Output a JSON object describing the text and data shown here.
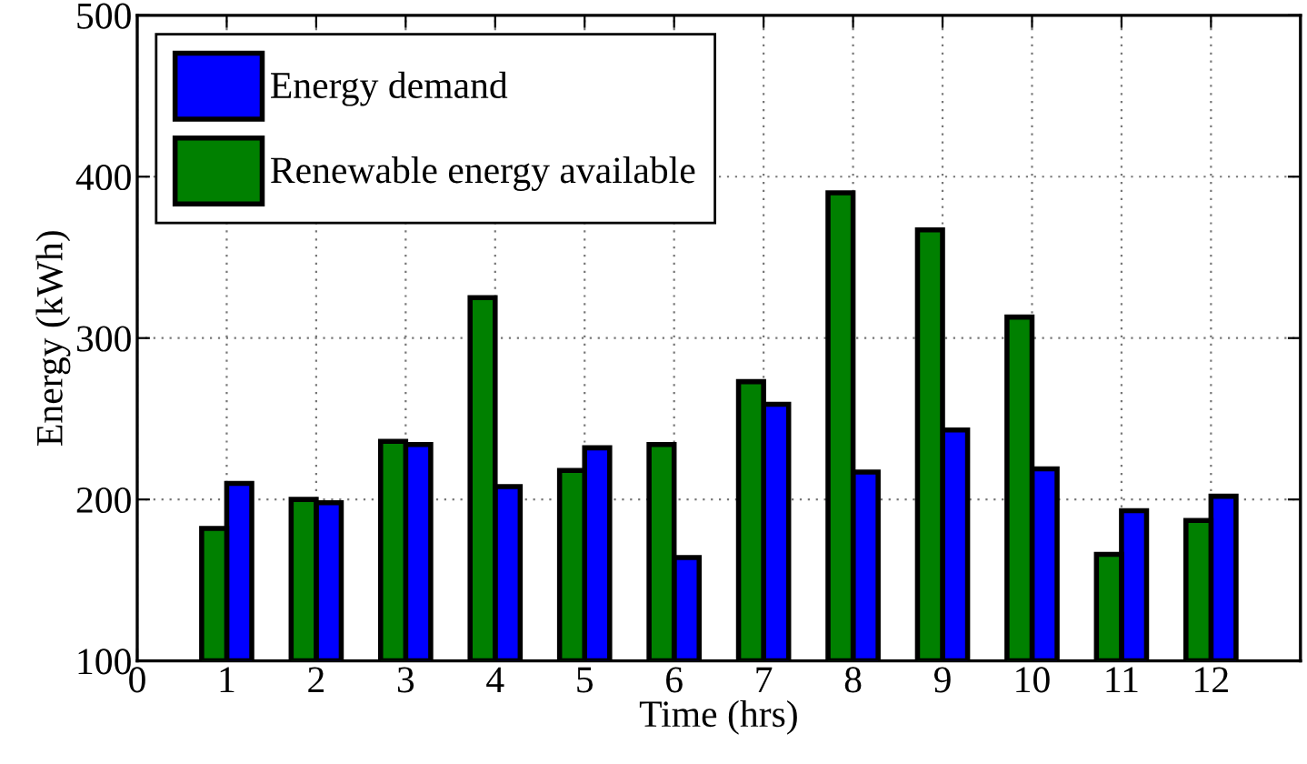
{
  "chart_data": {
    "type": "bar",
    "xlabel": "Time (hrs)",
    "ylabel": "Energy (kWh)",
    "x": [
      1,
      2,
      3,
      4,
      5,
      6,
      7,
      8,
      9,
      10,
      11,
      12
    ],
    "series": [
      {
        "name": "Energy demand",
        "color": "#0000ff",
        "values": [
          210,
          198,
          234,
          208,
          232,
          164,
          259,
          217,
          243,
          219,
          193,
          202
        ]
      },
      {
        "name": "Renewable energy available",
        "color": "#008000",
        "values": [
          182,
          200,
          236,
          325,
          218,
          234,
          273,
          390,
          367,
          313,
          166,
          187
        ]
      }
    ],
    "xlim": [
      0,
      13
    ],
    "xticks": [
      0,
      1,
      2,
      3,
      4,
      5,
      6,
      7,
      8,
      9,
      10,
      11,
      12
    ],
    "ylim": [
      100,
      500
    ],
    "yticks": [
      100,
      200,
      300,
      400,
      500
    ],
    "grid": true,
    "legend": "top left"
  }
}
